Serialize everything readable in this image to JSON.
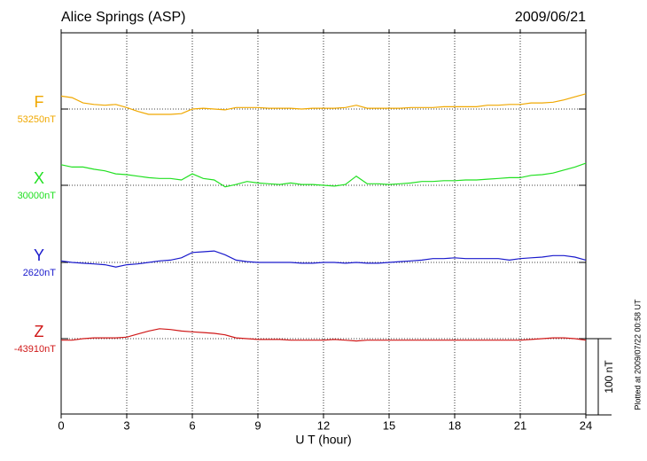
{
  "chart_data": {
    "type": "line",
    "title": "Alice Springs (ASP)",
    "date": "2009/06/21",
    "xlabel": "U T (hour)",
    "note": "Plotted at 2009/07/22 00:58 UT",
    "xlim": [
      0,
      24
    ],
    "xticks": [
      0,
      3,
      6,
      9,
      12,
      15,
      18,
      21,
      24
    ],
    "grid": true,
    "scale_bar": {
      "value": 100,
      "label": "100 nT"
    },
    "x": [
      0,
      0.5,
      1,
      1.5,
      2,
      2.5,
      3,
      3.5,
      4,
      4.5,
      5,
      5.5,
      6,
      6.5,
      7,
      7.5,
      8,
      8.5,
      9,
      9.5,
      10,
      10.5,
      11,
      11.5,
      12,
      12.5,
      13,
      13.5,
      14,
      14.5,
      15,
      15.5,
      16,
      16.5,
      17,
      17.5,
      18,
      18.5,
      19,
      19.5,
      20,
      20.5,
      21,
      21.5,
      22,
      22.5,
      23,
      23.5,
      24
    ],
    "series": [
      {
        "name": "F",
        "color": "#f0a800",
        "baseline": {
          "value": 53250,
          "label": "53250nT"
        },
        "values": [
          53267,
          53265,
          53258,
          53256,
          53255,
          53256,
          53252,
          53247,
          53243,
          53243,
          53243,
          53244,
          53250,
          53251,
          53250,
          53249,
          53252,
          53252,
          53252,
          53251,
          53251,
          53251,
          53250,
          53251,
          53251,
          53251,
          53252,
          53255,
          53251,
          53251,
          53251,
          53251,
          53252,
          53252,
          53252,
          53253,
          53253,
          53253,
          53253,
          53255,
          53255,
          53256,
          53256,
          53258,
          53258,
          53259,
          53262,
          53266,
          53270
        ]
      },
      {
        "name": "X",
        "color": "#22e022",
        "baseline": {
          "value": 30000,
          "label": "30000nT"
        },
        "values": [
          30027,
          30024,
          30024,
          30021,
          30019,
          30015,
          30014,
          30012,
          30010,
          30009,
          30009,
          30007,
          30015,
          30009,
          30007,
          29998,
          30001,
          30005,
          30003,
          30002,
          30001,
          30003,
          30001,
          30001,
          30000,
          29999,
          30001,
          30012,
          30002,
          30002,
          30001,
          30002,
          30003,
          30005,
          30005,
          30006,
          30006,
          30007,
          30007,
          30008,
          30009,
          30010,
          30010,
          30013,
          30014,
          30016,
          30020,
          30024,
          30029
        ]
      },
      {
        "name": "Y",
        "color": "#1a1acc",
        "baseline": {
          "value": 2620,
          "label": "2620nT"
        },
        "values": [
          2622,
          2620,
          2619,
          2618,
          2617,
          2614,
          2617,
          2618,
          2620,
          2622,
          2623,
          2626,
          2633,
          2634,
          2635,
          2630,
          2623,
          2621,
          2620,
          2620,
          2620,
          2620,
          2619,
          2619,
          2620,
          2620,
          2619,
          2620,
          2619,
          2619,
          2620,
          2621,
          2622,
          2623,
          2625,
          2625,
          2626,
          2625,
          2625,
          2625,
          2625,
          2623,
          2625,
          2626,
          2627,
          2629,
          2629,
          2627,
          2623
        ]
      },
      {
        "name": "Z",
        "color": "#d01818",
        "baseline": {
          "value": -43910,
          "label": "-43910nT"
        },
        "values": [
          -43912,
          -43912,
          -43910,
          -43909,
          -43909,
          -43909,
          -43908,
          -43904,
          -43900,
          -43897,
          -43898,
          -43900,
          -43901,
          -43902,
          -43903,
          -43905,
          -43909,
          -43910,
          -43911,
          -43911,
          -43911,
          -43912,
          -43912,
          -43912,
          -43912,
          -43911,
          -43912,
          -43913,
          -43912,
          -43912,
          -43912,
          -43912,
          -43912,
          -43912,
          -43912,
          -43912,
          -43912,
          -43912,
          -43912,
          -43912,
          -43912,
          -43912,
          -43912,
          -43911,
          -43910,
          -43909,
          -43909,
          -43910,
          -43912
        ]
      }
    ]
  }
}
